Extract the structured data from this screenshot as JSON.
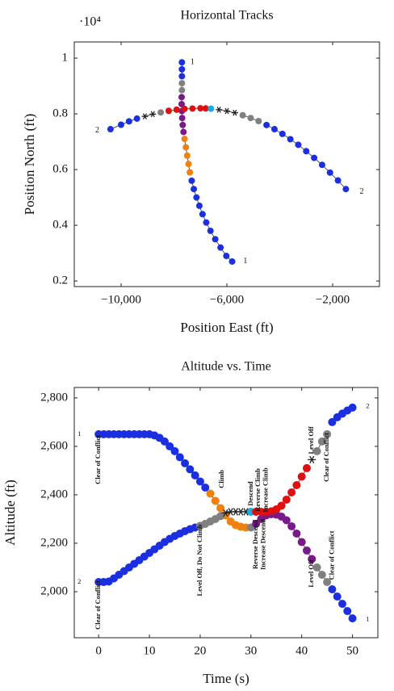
{
  "chart_data": [
    {
      "type": "scatter",
      "title": "Horizontal Tracks",
      "x_label": "Position East (ft)",
      "y_label": "Position North (ft)",
      "y_multiplier": "·10⁴",
      "xlim": [
        -11770,
        -230
      ],
      "ylim": [
        0.18,
        1.058
      ],
      "xticks": [
        {
          "value": -10000,
          "label": "−10,000"
        },
        {
          "value": -6000,
          "label": "−6,000"
        },
        {
          "value": -2000,
          "label": "−2,000"
        }
      ],
      "yticks": [
        0.2,
        0.4,
        0.6,
        0.8,
        1
      ],
      "series": [
        {
          "color": "#1a2fe0",
          "x": [
            -7700,
            -7700,
            -7700
          ],
          "values": [
            0.985,
            0.96,
            0.935
          ]
        },
        {
          "color": "#808080",
          "x": [
            -7700,
            -7700
          ],
          "values": [
            0.91,
            0.885
          ]
        },
        {
          "color": "#7a1a8a",
          "x": [
            -7710,
            -7710,
            -7700,
            -7690,
            -7670,
            -7640
          ],
          "values": [
            0.86,
            0.835,
            0.81,
            0.785,
            0.76,
            0.735
          ]
        },
        {
          "color": "#f08010",
          "x": [
            -7600,
            -7550,
            -7500,
            -7450,
            -7400
          ],
          "values": [
            0.71,
            0.68,
            0.65,
            0.62,
            0.59
          ]
        },
        {
          "color": "#1a2fe0",
          "x": [
            -7330,
            -7250,
            -7150,
            -7040,
            -6920,
            -6780,
            -6620,
            -6440,
            -6240,
            -6020,
            -5800
          ],
          "values": [
            0.56,
            0.53,
            0.5,
            0.47,
            0.44,
            0.41,
            0.38,
            0.35,
            0.32,
            0.29,
            0.27
          ]
        },
        {
          "color": "#1a2fe0",
          "x": [
            -10400,
            -10000,
            -9700,
            -9400
          ],
          "values": [
            0.745,
            0.761,
            0.773,
            0.783
          ]
        },
        {
          "color": "#202020",
          "marker": "asterisk",
          "x": [
            -9100,
            -8800
          ],
          "values": [
            0.791,
            0.799
          ]
        },
        {
          "color": "#808080",
          "x": [
            -8500
          ],
          "values": [
            0.805
          ]
        },
        {
          "color": "#e01010",
          "x": [
            -8200,
            -7900,
            -7600,
            -7300,
            -7000,
            -6800
          ],
          "values": [
            0.811,
            0.815,
            0.818,
            0.819,
            0.82,
            0.8196
          ]
        },
        {
          "color": "#20a8e0",
          "x": [
            -6600
          ],
          "values": [
            0.8185
          ]
        },
        {
          "color": "#202020",
          "marker": "asterisk",
          "x": [
            -6300,
            -6000,
            -5700
          ],
          "values": [
            0.815,
            0.81,
            0.804
          ]
        },
        {
          "color": "#808080",
          "x": [
            -5400,
            -5100,
            -4800
          ],
          "values": [
            0.795,
            0.785,
            0.774
          ]
        },
        {
          "color": "#1a2fe0",
          "x": [
            -4500,
            -4200,
            -3900,
            -3600,
            -3300,
            -3000,
            -2700,
            -2400,
            -2100,
            -1800,
            -1500
          ],
          "values": [
            0.76,
            0.745,
            0.728,
            0.709,
            0.689,
            0.666,
            0.642,
            0.617,
            0.589,
            0.561,
            0.53
          ]
        }
      ],
      "annotations": [
        {
          "text": "1",
          "x": -7300,
          "y": 0.985
        },
        {
          "text": "1",
          "x": -5300,
          "y": 0.27
        },
        {
          "text": "2",
          "x": -10900,
          "y": 0.74
        },
        {
          "text": "2",
          "x": -900,
          "y": 0.52
        }
      ]
    },
    {
      "type": "scatter",
      "title": "Altitude vs. Time",
      "x_label": "Time (s)",
      "y_label": "Altitude (ft)",
      "xlim": [
        -4.8,
        55
      ],
      "ylim": [
        1810,
        2843
      ],
      "xticks": [
        0,
        10,
        20,
        30,
        40,
        50
      ],
      "yticks": [
        {
          "value": 2000,
          "label": "2,000"
        },
        {
          "value": 2200,
          "label": "2,200"
        },
        {
          "value": 2400,
          "label": "2,400"
        },
        {
          "value": 2600,
          "label": "2,600"
        },
        {
          "value": 2800,
          "label": "2,800"
        }
      ],
      "series": [
        {
          "color": "#1a2fe0",
          "x": [
            0,
            1,
            2,
            3,
            4,
            5,
            6,
            7,
            8,
            9,
            10,
            11,
            12,
            13,
            14,
            15,
            16,
            17,
            18,
            19,
            20,
            21
          ],
          "values": [
            2650,
            2650,
            2650,
            2650,
            2650,
            2650,
            2650,
            2650,
            2650,
            2650,
            2650,
            2645,
            2635,
            2620,
            2600,
            2580,
            2555,
            2530,
            2505,
            2480,
            2455,
            2430
          ]
        },
        {
          "color": "#f08010",
          "x": [
            22,
            23,
            24,
            25,
            26,
            27,
            28,
            29
          ],
          "values": [
            2405,
            2375,
            2345,
            2315,
            2290,
            2275,
            2268,
            2265
          ]
        },
        {
          "color": "#808080",
          "x": [
            30
          ],
          "values": [
            2265
          ]
        },
        {
          "color": "#7a1a8a",
          "x": [
            31,
            32,
            33,
            34,
            35,
            36,
            37,
            38,
            39,
            40,
            41,
            42
          ],
          "values": [
            2280,
            2300,
            2315,
            2320,
            2318,
            2310,
            2295,
            2270,
            2240,
            2205,
            2170,
            2135
          ]
        },
        {
          "color": "#808080",
          "x": [
            43,
            44,
            45
          ],
          "values": [
            2100,
            2070,
            2040
          ]
        },
        {
          "color": "#1a2fe0",
          "x": [
            46,
            47,
            48,
            49,
            50
          ],
          "values": [
            2010,
            1980,
            1950,
            1920,
            1890
          ]
        },
        {
          "color": "#1a2fe0",
          "x": [
            0,
            1,
            2,
            3,
            4,
            5,
            6,
            7,
            8,
            9,
            10,
            11,
            12,
            13,
            14,
            15,
            16,
            17,
            18,
            19
          ],
          "values": [
            2040,
            2040,
            2042,
            2055,
            2070,
            2085,
            2100,
            2115,
            2130,
            2145,
            2160,
            2175,
            2190,
            2205,
            2218,
            2230,
            2240,
            2250,
            2258,
            2265
          ]
        },
        {
          "color": "#808080",
          "x": [
            20,
            21,
            22,
            23,
            24
          ],
          "values": [
            2272,
            2280,
            2290,
            2300,
            2312
          ]
        },
        {
          "color": "#202020",
          "marker": "asterisk",
          "x": [
            25,
            26,
            27,
            28,
            29
          ],
          "values": [
            2325,
            2330,
            2330,
            2330,
            2330
          ]
        },
        {
          "color": "#20a8e0",
          "x": [
            30
          ],
          "values": [
            2330
          ]
        },
        {
          "color": "#e01010",
          "x": [
            31,
            32,
            33,
            34,
            35,
            36,
            37,
            38,
            39,
            40,
            41
          ],
          "values": [
            2330,
            2330,
            2330,
            2332,
            2340,
            2355,
            2380,
            2410,
            2440,
            2475,
            2510
          ]
        },
        {
          "color": "#202020",
          "marker": "asterisk",
          "x": [
            42
          ],
          "values": [
            2545
          ]
        },
        {
          "color": "#808080",
          "x": [
            43,
            44,
            45
          ],
          "values": [
            2580,
            2620,
            2650
          ]
        },
        {
          "color": "#1a2fe0",
          "x": [
            46,
            47,
            48,
            49,
            50
          ],
          "values": [
            2700,
            2720,
            2735,
            2748,
            2760
          ]
        }
      ],
      "annotations": [
        {
          "text": "1",
          "x": -3.8,
          "y": 2650
        },
        {
          "text": "2",
          "x": -3.8,
          "y": 2040
        },
        {
          "text": "2",
          "x": 53,
          "y": 2765
        },
        {
          "text": "1",
          "x": 53,
          "y": 1885
        },
        {
          "text": "Clear of Conflict",
          "x": 0,
          "y": 2545,
          "vertical": true
        },
        {
          "text": "Clear of Conflict",
          "x": 0,
          "y": 1945,
          "vertical": true
        },
        {
          "text": "Climb",
          "x": 24.3,
          "y": 2465,
          "vertical": true
        },
        {
          "text": "Level Off, Do Not Climb",
          "x": 20,
          "y": 2130,
          "vertical": true
        },
        {
          "text": "Descend",
          "x": 30,
          "y": 2405,
          "vertical": true
        },
        {
          "text": "Reverse Climb",
          "x": 31.5,
          "y": 2420,
          "vertical": true
        },
        {
          "text": "Increase Climb",
          "x": 33,
          "y": 2420,
          "vertical": true
        },
        {
          "text": "Reverse Descend",
          "x": 31,
          "y": 2195,
          "vertical": true
        },
        {
          "text": "Increase Descend",
          "x": 32.5,
          "y": 2195,
          "vertical": true
        },
        {
          "text": "Level Off",
          "x": 42,
          "y": 2625,
          "vertical": true
        },
        {
          "text": "Clear of Conflict",
          "x": 45,
          "y": 2555,
          "vertical": true
        },
        {
          "text": "Level Off",
          "x": 42,
          "y": 2075,
          "vertical": true
        },
        {
          "text": "Clear of Conflict",
          "x": 46,
          "y": 2150,
          "vertical": true
        }
      ]
    }
  ]
}
